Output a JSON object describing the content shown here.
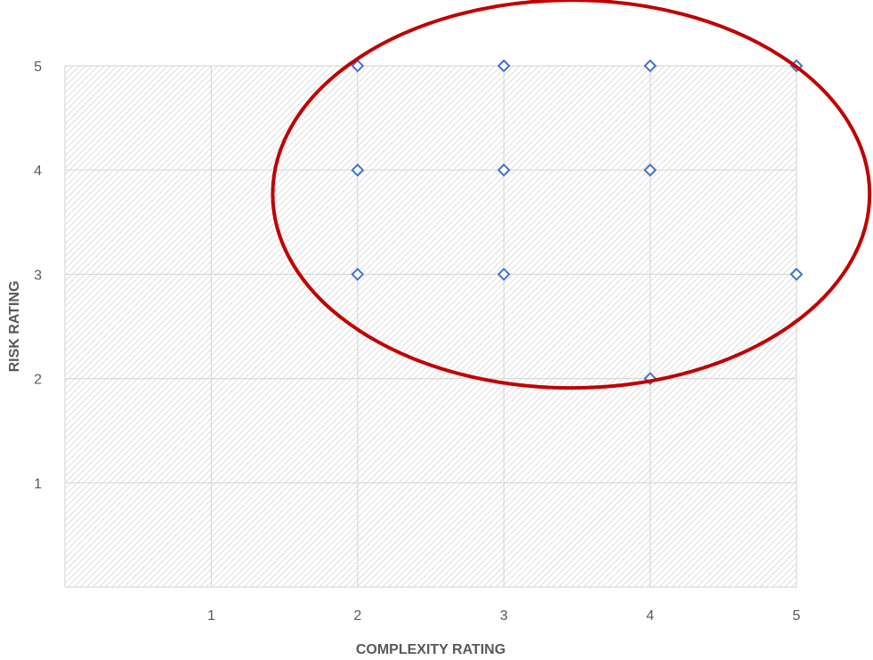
{
  "chart_data": {
    "type": "scatter",
    "title": "",
    "xlabel": "COMPLEXITY RATING",
    "ylabel": "RISK RATING",
    "xlim": [
      0,
      5
    ],
    "ylim": [
      0,
      5
    ],
    "x_ticks": [
      "1",
      "2",
      "3",
      "4",
      "5"
    ],
    "y_ticks": [
      "1",
      "2",
      "3",
      "4",
      "5"
    ],
    "grid": true,
    "legend": "none",
    "series": [
      {
        "marker": "diamond-open",
        "color": "#4472c4",
        "points": [
          {
            "x": 2,
            "y": 5
          },
          {
            "x": 3,
            "y": 5
          },
          {
            "x": 4,
            "y": 5
          },
          {
            "x": 5,
            "y": 5
          },
          {
            "x": 2,
            "y": 4
          },
          {
            "x": 3,
            "y": 4
          },
          {
            "x": 4,
            "y": 4
          },
          {
            "x": 2,
            "y": 3
          },
          {
            "x": 3,
            "y": 3
          },
          {
            "x": 5,
            "y": 3
          },
          {
            "x": 4,
            "y": 2
          }
        ]
      }
    ],
    "annotations": [
      {
        "type": "ellipse",
        "color": "#c00000",
        "center": {
          "x": 3.46,
          "y": 3.77
        },
        "radius_x": 2.04,
        "radius_y": 1.86
      }
    ],
    "colors": {
      "plot_hatch": "#d4d4d4",
      "gridline": "#d9d9d9",
      "axis_text": "#595959"
    }
  }
}
